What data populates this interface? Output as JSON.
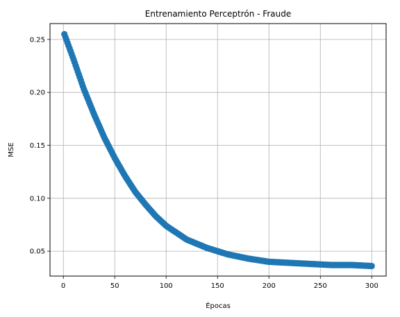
{
  "chart_data": {
    "type": "line",
    "title": "Entrenamiento Perceptrón - Fraude",
    "xlabel": "Épocas",
    "ylabel": "MSE",
    "xlim": [
      -13,
      314
    ],
    "ylim": [
      0.0265,
      0.265
    ],
    "xticks": [
      0,
      50,
      100,
      150,
      200,
      250,
      300
    ],
    "yticks": [
      0.05,
      0.1,
      0.15,
      0.2,
      0.25
    ],
    "ytick_labels": [
      "0.05",
      "0.10",
      "0.15",
      "0.20",
      "0.25"
    ],
    "grid": true,
    "marker": "circle",
    "color": "#1f77b4",
    "series": [
      {
        "x_start": 1,
        "x_end": 300,
        "decay_points": [
          [
            1,
            0.255
          ],
          [
            10,
            0.231
          ],
          [
            20,
            0.203
          ],
          [
            30,
            0.179
          ],
          [
            40,
            0.157
          ],
          [
            50,
            0.138
          ],
          [
            60,
            0.121
          ],
          [
            70,
            0.106
          ],
          [
            80,
            0.094
          ],
          [
            90,
            0.083
          ],
          [
            100,
            0.074
          ],
          [
            120,
            0.061
          ],
          [
            140,
            0.053
          ],
          [
            160,
            0.047
          ],
          [
            180,
            0.043
          ],
          [
            200,
            0.04
          ],
          [
            220,
            0.039
          ],
          [
            240,
            0.038
          ],
          [
            260,
            0.037
          ],
          [
            280,
            0.037
          ],
          [
            300,
            0.036
          ]
        ]
      }
    ]
  }
}
